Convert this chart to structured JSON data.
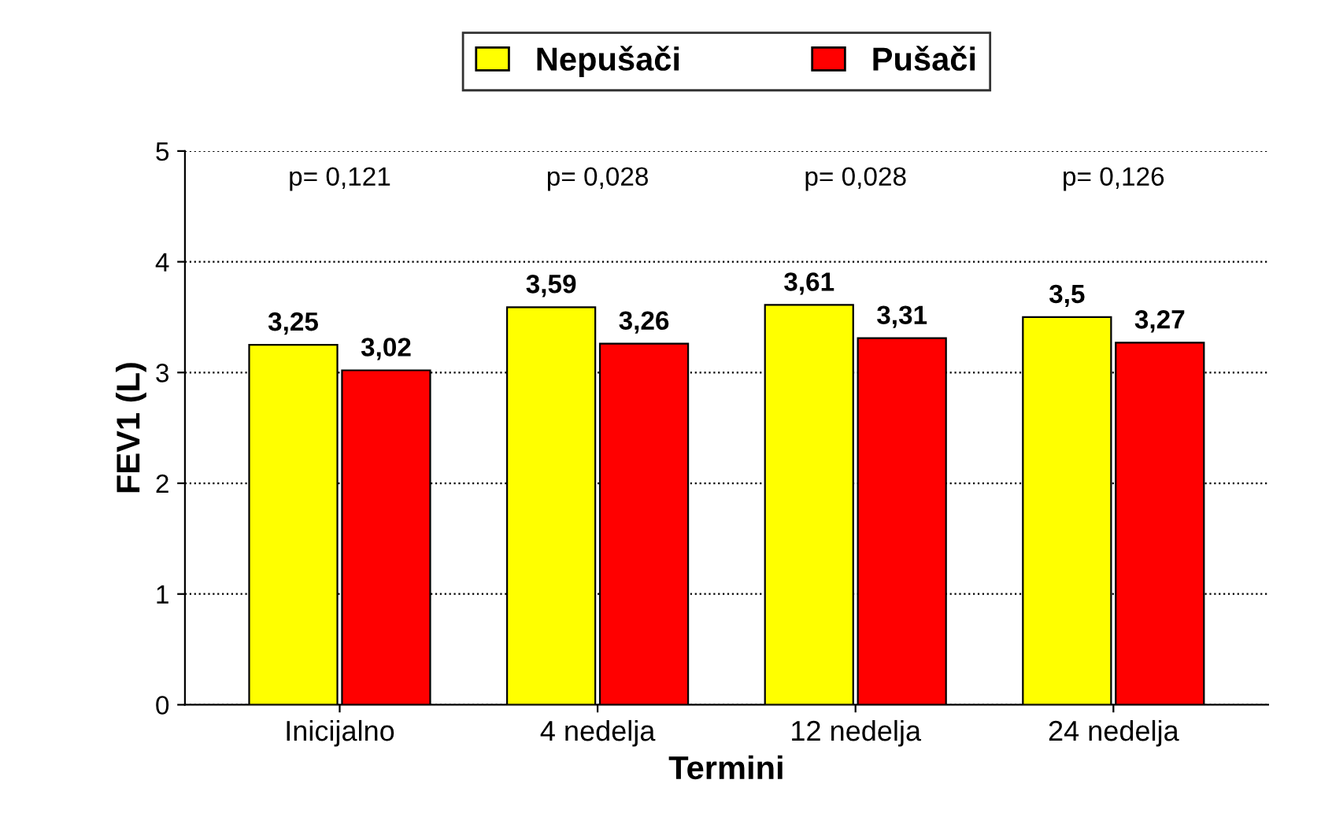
{
  "chart_data": {
    "type": "bar",
    "xlabel": "Termini",
    "ylabel": "FEV1 (L)",
    "categories": [
      "Inicijalno",
      "4 nedelja",
      "12 nedelja",
      "24 nedelja"
    ],
    "series": [
      {
        "name": "Nepušači",
        "color": "#ffff00",
        "values": [
          3.25,
          3.59,
          3.61,
          3.5
        ],
        "value_labels": [
          "3,25",
          "3,59",
          "3,61",
          "3,5"
        ]
      },
      {
        "name": "Pušači",
        "color": "#ff0000",
        "values": [
          3.02,
          3.26,
          3.31,
          3.27
        ],
        "value_labels": [
          "3,02",
          "3,26",
          "3,31",
          "3,27"
        ]
      }
    ],
    "annotations": [
      "p= 0,121",
      "p= 0,028",
      "p= 0,028",
      "p= 0,126"
    ],
    "ylim": [
      0,
      5
    ],
    "yticks": [
      0,
      1,
      2,
      3,
      4,
      5
    ],
    "grid": "y",
    "legend": "top"
  }
}
